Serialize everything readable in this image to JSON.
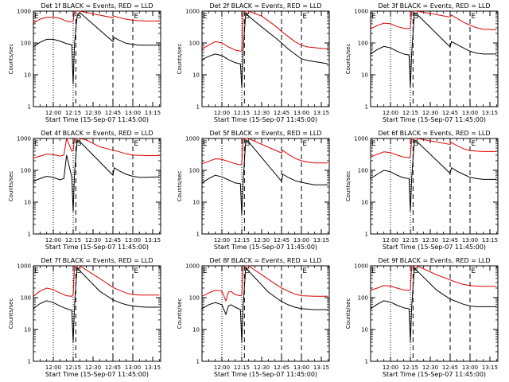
{
  "start_time_label": "Start Time (15-Sep-07 11:45:00)",
  "y_axis_label": "Counts/sec",
  "x_ticks": [
    "12:00",
    "12:15",
    "12:30",
    "12:45",
    "13:00",
    "13:15"
  ],
  "y_ticks": [
    "1",
    "10",
    "100",
    "1000"
  ],
  "interval_marks": [
    "E",
    "S",
    "E"
  ],
  "colors": {
    "events": "#000000",
    "lld": "#dd0000",
    "axis": "#000000"
  },
  "chart_data": [
    {
      "type": "line",
      "title": "Det 1f BLACK = Events, RED = LLD",
      "xlabel": "Start Time (15-Sep-07 11:45:00)",
      "ylabel": "Counts/sec",
      "x_unit": "minutes after 11:45",
      "xlim": [
        0,
        96
      ],
      "ylim": [
        1,
        1000
      ],
      "yscale": "log",
      "dotted_lines_minutes": [
        15,
        30
      ],
      "dashed_lines_minutes": [
        32,
        60,
        75
      ],
      "series": [
        {
          "name": "BLACK = Events",
          "x": [
            0,
            5,
            10,
            15,
            20,
            25,
            29,
            30,
            31,
            33,
            35,
            60,
            61,
            64,
            70,
            75,
            80,
            85,
            95
          ],
          "y": [
            75,
            105,
            130,
            130,
            115,
            95,
            88,
            5,
            95,
            700,
            900,
            110,
            150,
            125,
            98,
            90,
            85,
            85,
            85
          ]
        },
        {
          "name": "RED = LLD",
          "x": [
            0,
            5,
            10,
            15,
            20,
            25,
            29,
            30,
            31,
            33,
            35,
            60,
            61,
            64,
            70,
            75,
            80,
            85,
            95
          ],
          "y": [
            420,
            560,
            640,
            640,
            600,
            480,
            460,
            480,
            1000,
            1000,
            1000,
            620,
            700,
            640,
            560,
            520,
            500,
            490,
            490
          ]
        }
      ]
    },
    {
      "type": "line",
      "title": "Det 2f BLACK = Events, RED = LLD",
      "xlabel": "Start Time (15-Sep-07 11:45:00)",
      "ylabel": "Counts/sec",
      "x_unit": "minutes after 11:45",
      "xlim": [
        0,
        96
      ],
      "ylim": [
        1,
        1000
      ],
      "yscale": "log",
      "dotted_lines_minutes": [
        15,
        30
      ],
      "dashed_lines_minutes": [
        32,
        60,
        75
      ],
      "series": [
        {
          "name": "BLACK = Events",
          "x": [
            0,
            5,
            10,
            15,
            20,
            25,
            29,
            30,
            31,
            33,
            35,
            45,
            55,
            60,
            65,
            70,
            75,
            80,
            90,
            95
          ],
          "y": [
            30,
            38,
            45,
            40,
            30,
            24,
            22,
            4,
            60,
            900,
            700,
            320,
            150,
            100,
            65,
            45,
            32,
            28,
            24,
            22
          ]
        },
        {
          "name": "RED = LLD",
          "x": [
            0,
            5,
            10,
            15,
            20,
            25,
            29,
            30,
            31,
            33,
            35,
            45,
            55,
            60,
            65,
            70,
            75,
            80,
            90,
            95
          ],
          "y": [
            65,
            85,
            110,
            100,
            75,
            60,
            55,
            58,
            1000,
            1000,
            1000,
            700,
            350,
            230,
            160,
            110,
            85,
            75,
            68,
            65
          ]
        }
      ]
    },
    {
      "type": "line",
      "title": "Det 3f BLACK = Events, RED = LLD",
      "xlabel": "Start Time (15-Sep-07 11:45:00)",
      "ylabel": "Counts/sec",
      "x_unit": "minutes after 11:45",
      "xlim": [
        0,
        96
      ],
      "ylim": [
        1,
        1000
      ],
      "yscale": "log",
      "dotted_lines_minutes": [
        15,
        30
      ],
      "dashed_lines_minutes": [
        32,
        60,
        75
      ],
      "series": [
        {
          "name": "BLACK = Events",
          "x": [
            0,
            5,
            10,
            15,
            20,
            25,
            29,
            30,
            31,
            33,
            35,
            60,
            61,
            65,
            70,
            75,
            80,
            85,
            95
          ],
          "y": [
            45,
            62,
            78,
            70,
            55,
            45,
            42,
            4,
            50,
            900,
            800,
            75,
            110,
            90,
            70,
            55,
            48,
            45,
            45
          ]
        },
        {
          "name": "RED = LLD",
          "x": [
            0,
            5,
            10,
            15,
            20,
            25,
            29,
            30,
            31,
            33,
            35,
            60,
            61,
            65,
            70,
            75,
            80,
            85,
            95
          ],
          "y": [
            280,
            350,
            420,
            400,
            330,
            290,
            280,
            300,
            1000,
            1000,
            1000,
            650,
            750,
            600,
            450,
            360,
            300,
            270,
            260
          ]
        }
      ]
    },
    {
      "type": "line",
      "title": "Det 4f BLACK = Events, RED = LLD",
      "xlabel": "Start Time (15-Sep-07 11:45:00)",
      "ylabel": "Counts/sec",
      "x_unit": "minutes after 11:45",
      "xlim": [
        0,
        96
      ],
      "ylim": [
        1,
        1000
      ],
      "yscale": "log",
      "dotted_lines_minutes": [
        15,
        30
      ],
      "dashed_lines_minutes": [
        32,
        60,
        75
      ],
      "series": [
        {
          "name": "BLACK = Events",
          "x": [
            0,
            5,
            10,
            15,
            20,
            23,
            25,
            29,
            30,
            31,
            33,
            35,
            60,
            61,
            65,
            70,
            75,
            80,
            85,
            95
          ],
          "y": [
            45,
            55,
            65,
            60,
            50,
            55,
            300,
            60,
            5,
            80,
            900,
            800,
            70,
            120,
            95,
            75,
            65,
            60,
            60,
            62
          ]
        },
        {
          "name": "RED = LLD",
          "x": [
            0,
            5,
            10,
            15,
            20,
            23,
            25,
            29,
            30,
            31,
            33,
            35,
            40,
            50,
            60,
            65,
            70,
            75,
            85,
            95
          ],
          "y": [
            240,
            280,
            320,
            310,
            280,
            300,
            1000,
            400,
            420,
            1000,
            1000,
            1000,
            900,
            550,
            430,
            380,
            330,
            300,
            290,
            290
          ]
        }
      ]
    },
    {
      "type": "line",
      "title": "Det 5f BLACK = Events, RED = LLD",
      "xlabel": "Start Time (15-Sep-07 11:45:00)",
      "ylabel": "Counts/sec",
      "x_unit": "minutes after 11:45",
      "xlim": [
        0,
        96
      ],
      "ylim": [
        1,
        1000
      ],
      "yscale": "log",
      "dotted_lines_minutes": [
        15,
        30
      ],
      "dashed_lines_minutes": [
        32,
        60,
        75
      ],
      "series": [
        {
          "name": "BLACK = Events",
          "x": [
            0,
            5,
            10,
            15,
            20,
            25,
            29,
            30,
            31,
            33,
            35,
            60,
            61,
            65,
            70,
            75,
            80,
            85,
            95
          ],
          "y": [
            40,
            55,
            70,
            62,
            50,
            40,
            38,
            4,
            45,
            900,
            800,
            45,
            75,
            60,
            48,
            42,
            38,
            35,
            35
          ]
        },
        {
          "name": "RED = LLD",
          "x": [
            0,
            5,
            10,
            15,
            20,
            25,
            29,
            30,
            31,
            33,
            35,
            60,
            61,
            65,
            70,
            75,
            80,
            85,
            95
          ],
          "y": [
            160,
            190,
            230,
            220,
            190,
            160,
            150,
            160,
            1000,
            1000,
            1000,
            350,
            420,
            320,
            240,
            200,
            180,
            170,
            170
          ]
        }
      ]
    },
    {
      "type": "line",
      "title": "Det 6f BLACK = Events, RED = LLD",
      "xlabel": "Start Time (15-Sep-07 11:45:00)",
      "ylabel": "Counts/sec",
      "x_unit": "minutes after 11:45",
      "xlim": [
        0,
        96
      ],
      "ylim": [
        1,
        1000
      ],
      "yscale": "log",
      "dotted_lines_minutes": [
        15,
        30
      ],
      "dashed_lines_minutes": [
        32,
        60,
        75
      ],
      "series": [
        {
          "name": "BLACK = Events",
          "x": [
            0,
            5,
            10,
            15,
            20,
            25,
            29,
            30,
            31,
            33,
            35,
            60,
            61,
            65,
            70,
            75,
            80,
            85,
            95
          ],
          "y": [
            55,
            75,
            100,
            90,
            70,
            58,
            55,
            5,
            60,
            900,
            800,
            80,
            120,
            95,
            75,
            60,
            55,
            52,
            52
          ]
        },
        {
          "name": "RED = LLD",
          "x": [
            0,
            5,
            10,
            15,
            20,
            25,
            29,
            30,
            31,
            33,
            35,
            60,
            61,
            65,
            70,
            75,
            80,
            85,
            95
          ],
          "y": [
            260,
            320,
            380,
            360,
            300,
            260,
            250,
            270,
            1000,
            1000,
            1000,
            650,
            750,
            600,
            480,
            420,
            400,
            390,
            390
          ]
        }
      ]
    },
    {
      "type": "line",
      "title": "Det 7f BLACK = Events, RED = LLD",
      "xlabel": "Start Time (15-Sep-07 11:45:00)",
      "ylabel": "Counts/sec",
      "x_unit": "minutes after 11:45",
      "xlim": [
        0,
        96
      ],
      "ylim": [
        1,
        1000
      ],
      "yscale": "log",
      "dotted_lines_minutes": [
        15,
        30
      ],
      "dashed_lines_minutes": [
        32,
        60,
        75
      ],
      "series": [
        {
          "name": "BLACK = Events",
          "x": [
            0,
            5,
            10,
            15,
            20,
            25,
            29,
            30,
            31,
            33,
            35,
            50,
            60,
            65,
            70,
            75,
            80,
            85,
            95
          ],
          "y": [
            45,
            65,
            80,
            70,
            55,
            45,
            40,
            4,
            55,
            900,
            700,
            160,
            85,
            70,
            60,
            55,
            52,
            50,
            50
          ]
        },
        {
          "name": "RED = LLD",
          "x": [
            0,
            5,
            10,
            15,
            20,
            25,
            29,
            30,
            31,
            33,
            35,
            50,
            60,
            65,
            70,
            75,
            80,
            85,
            95
          ],
          "y": [
            110,
            160,
            200,
            180,
            140,
            115,
            110,
            120,
            1000,
            1000,
            1000,
            400,
            210,
            170,
            140,
            125,
            120,
            120,
            120
          ]
        }
      ]
    },
    {
      "type": "line",
      "title": "Det 8f BLACK = Events, RED = LLD",
      "xlabel": "Start Time (15-Sep-07 11:45:00)",
      "ylabel": "Counts/sec",
      "x_unit": "minutes after 11:45",
      "xlim": [
        0,
        96
      ],
      "ylim": [
        1,
        1000
      ],
      "yscale": "log",
      "dotted_lines_minutes": [
        15,
        30
      ],
      "dashed_lines_minutes": [
        32,
        60,
        75
      ],
      "series": [
        {
          "name": "BLACK = Events",
          "x": [
            0,
            5,
            10,
            15,
            18,
            20,
            22,
            25,
            29,
            30,
            31,
            33,
            35,
            50,
            60,
            65,
            70,
            75,
            85,
            95
          ],
          "y": [
            45,
            60,
            70,
            60,
            30,
            55,
            60,
            50,
            42,
            4,
            55,
            900,
            700,
            150,
            75,
            60,
            50,
            45,
            42,
            42
          ]
        },
        {
          "name": "RED = LLD",
          "x": [
            0,
            5,
            10,
            15,
            18,
            20,
            22,
            25,
            29,
            30,
            31,
            33,
            35,
            50,
            60,
            65,
            70,
            75,
            85,
            95
          ],
          "y": [
            110,
            140,
            170,
            160,
            80,
            150,
            155,
            125,
            115,
            120,
            1000,
            1000,
            1000,
            380,
            200,
            160,
            130,
            115,
            110,
            110
          ]
        }
      ]
    },
    {
      "type": "line",
      "title": "Det 9f BLACK = Events, RED = LLD",
      "xlabel": "Start Time (15-Sep-07 11:45:00)",
      "ylabel": "Counts/sec",
      "x_unit": "minutes after 11:45",
      "xlim": [
        0,
        96
      ],
      "ylim": [
        1,
        1000
      ],
      "yscale": "log",
      "dotted_lines_minutes": [
        15,
        30
      ],
      "dashed_lines_minutes": [
        32,
        60,
        75
      ],
      "series": [
        {
          "name": "BLACK = Events",
          "x": [
            0,
            5,
            10,
            15,
            20,
            25,
            29,
            30,
            31,
            33,
            35,
            50,
            60,
            65,
            70,
            75,
            80,
            85,
            95
          ],
          "y": [
            45,
            62,
            80,
            72,
            58,
            48,
            45,
            4,
            55,
            900,
            700,
            170,
            90,
            75,
            62,
            55,
            52,
            52,
            52
          ]
        },
        {
          "name": "RED = LLD",
          "x": [
            0,
            5,
            10,
            15,
            20,
            25,
            29,
            30,
            31,
            33,
            35,
            50,
            60,
            65,
            70,
            75,
            80,
            85,
            95
          ],
          "y": [
            170,
            200,
            240,
            230,
            200,
            175,
            170,
            180,
            1000,
            1000,
            1000,
            520,
            360,
            300,
            260,
            240,
            230,
            225,
            225
          ]
        }
      ]
    }
  ]
}
